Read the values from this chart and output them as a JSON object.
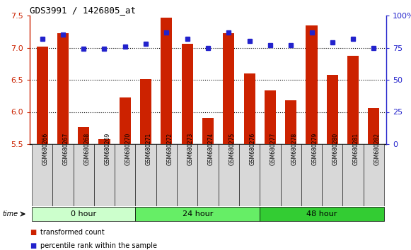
{
  "title": "GDS3991 / 1426805_at",
  "samples": [
    "GSM680266",
    "GSM680267",
    "GSM680268",
    "GSM680269",
    "GSM680270",
    "GSM680271",
    "GSM680272",
    "GSM680273",
    "GSM680274",
    "GSM680275",
    "GSM680276",
    "GSM680277",
    "GSM680278",
    "GSM680279",
    "GSM680280",
    "GSM680281",
    "GSM680282"
  ],
  "bar_values": [
    7.02,
    7.22,
    5.76,
    5.58,
    6.22,
    6.51,
    7.47,
    7.06,
    5.91,
    7.22,
    6.6,
    6.33,
    6.18,
    7.35,
    6.58,
    6.87,
    6.06
  ],
  "dot_values": [
    82,
    85,
    74,
    74,
    76,
    78,
    87,
    82,
    75,
    87,
    80,
    77,
    77,
    87,
    79,
    82,
    75
  ],
  "ylim_left": [
    5.5,
    7.5
  ],
  "ylim_right": [
    0,
    100
  ],
  "yticks_left": [
    5.5,
    6.0,
    6.5,
    7.0,
    7.5
  ],
  "yticks_right": [
    0,
    25,
    50,
    75,
    100
  ],
  "groups": [
    {
      "label": "0 hour",
      "start": 0,
      "end": 5,
      "color": "#ccffcc"
    },
    {
      "label": "24 hour",
      "start": 5,
      "end": 11,
      "color": "#66ee66"
    },
    {
      "label": "48 hour",
      "start": 11,
      "end": 17,
      "color": "#33cc33"
    }
  ],
  "bar_color": "#cc2200",
  "dot_color": "#2222cc",
  "label_bar": "transformed count",
  "label_dot": "percentile rank within the sample",
  "figsize": [
    5.81,
    3.54
  ],
  "dpi": 100
}
